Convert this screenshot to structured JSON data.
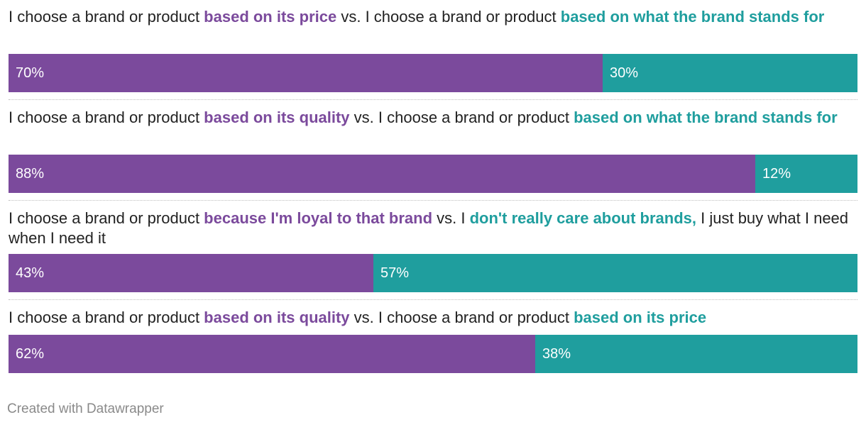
{
  "colors": {
    "left": "#7b4a9c",
    "right": "#1f9e9e"
  },
  "chart_data": {
    "type": "bar",
    "stacked": true,
    "orientation": "horizontal",
    "rows": [
      {
        "label": [
          {
            "text": "I choose a brand or product ",
            "style": "plain"
          },
          {
            "text": "based on its price",
            "style": "left"
          },
          {
            "text": " vs. I choose a brand or product ",
            "style": "plain"
          },
          {
            "text": "based on what the brand stands for",
            "style": "right"
          }
        ],
        "values": [
          70,
          30
        ],
        "value_labels": [
          "70%",
          "30%"
        ]
      },
      {
        "label": [
          {
            "text": "I choose a brand or product ",
            "style": "plain"
          },
          {
            "text": "based on its quality",
            "style": "left"
          },
          {
            "text": " vs. I choose a brand or product ",
            "style": "plain"
          },
          {
            "text": "based on what the brand stands for",
            "style": "right"
          }
        ],
        "values": [
          88,
          12
        ],
        "value_labels": [
          "88%",
          "12%"
        ]
      },
      {
        "label": [
          {
            "text": "I choose a brand or product ",
            "style": "plain"
          },
          {
            "text": "because I'm loyal to that brand",
            "style": "left"
          },
          {
            "text": " vs. I ",
            "style": "plain"
          },
          {
            "text": "don't really care about brands,",
            "style": "right"
          },
          {
            "text": " I just buy what I need when I need it",
            "style": "plain"
          }
        ],
        "values": [
          43,
          57
        ],
        "value_labels": [
          "43%",
          "57%"
        ]
      },
      {
        "label": [
          {
            "text": "I choose a brand or product ",
            "style": "plain"
          },
          {
            "text": "based on its quality",
            "style": "left"
          },
          {
            "text": " vs. I choose a brand or product ",
            "style": "plain"
          },
          {
            "text": "based on its price",
            "style": "right"
          }
        ],
        "values": [
          62,
          38
        ],
        "value_labels": [
          "62%",
          "38%"
        ]
      }
    ]
  },
  "footer": {
    "credit": "Created with Datawrapper"
  }
}
